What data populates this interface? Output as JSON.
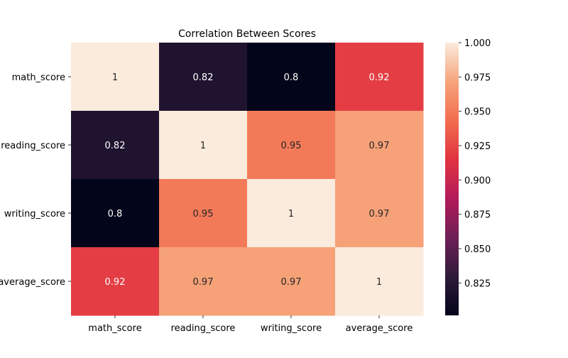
{
  "chart_data": {
    "type": "heatmap",
    "title": "Correlation Between Scores",
    "xlabel": "",
    "ylabel": "",
    "x_categories": [
      "math_score",
      "reading_score",
      "writing_score",
      "average_score"
    ],
    "y_categories": [
      "math_score",
      "reading_score",
      "writing_score",
      "average_score"
    ],
    "values": [
      [
        1.0,
        0.82,
        0.8,
        0.92
      ],
      [
        0.82,
        1.0,
        0.95,
        0.97
      ],
      [
        0.8,
        0.95,
        1.0,
        0.97
      ],
      [
        0.92,
        0.97,
        0.97,
        1.0
      ]
    ],
    "annotations": [
      [
        "1",
        "0.82",
        "0.8",
        "0.92"
      ],
      [
        "0.82",
        "1",
        "0.95",
        "0.97"
      ],
      [
        "0.8",
        "0.95",
        "1",
        "0.97"
      ],
      [
        "0.92",
        "0.97",
        "0.97",
        "1"
      ]
    ],
    "colorbar": {
      "min": 0.8014,
      "max": 1.0,
      "ticks": [
        "0.825",
        "0.850",
        "0.875",
        "0.900",
        "0.925",
        "0.950",
        "0.975",
        "1.000"
      ],
      "colormap": "rocket",
      "stops": [
        "#03051a",
        "#2f1b3a",
        "#6e1f57",
        "#b31b59",
        "#e13342",
        "#f26d4f",
        "#f6a47b",
        "#faebdd"
      ]
    },
    "grid": false
  }
}
